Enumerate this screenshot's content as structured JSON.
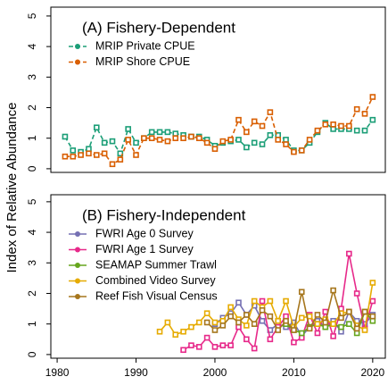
{
  "chart_data": [
    {
      "type": "line",
      "title": "(A) Fishery-Dependent",
      "ylabel": "Index of Relative Abundance",
      "x": [
        1981,
        1982,
        1983,
        1984,
        1985,
        1986,
        1987,
        1988,
        1989,
        1990,
        1991,
        1992,
        1993,
        1994,
        1995,
        1996,
        1997,
        1998,
        1999,
        2000,
        2001,
        2002,
        2003,
        2004,
        2005,
        2006,
        2007,
        2008,
        2009,
        2010,
        2011,
        2012,
        2013,
        2014,
        2015,
        2016,
        2017,
        2018,
        2019,
        2020
      ],
      "xlim": [
        1979.2,
        2021.6
      ],
      "ylim": [
        -0.12,
        5.29
      ],
      "yticks": [
        0,
        1,
        2,
        3,
        4,
        5
      ],
      "dashed": true,
      "series": [
        {
          "name": "MRIP Private CPUE",
          "color": "#1b9e77",
          "values": [
            1.05,
            0.6,
            0.55,
            0.65,
            1.35,
            0.85,
            0.9,
            0.5,
            1.3,
            0.85,
            1.0,
            1.2,
            1.2,
            1.2,
            1.15,
            1.1,
            1.05,
            1.05,
            0.95,
            0.75,
            0.85,
            0.9,
            0.95,
            0.7,
            0.85,
            0.8,
            1.1,
            1.1,
            0.95,
            0.6,
            0.6,
            0.85,
            1.2,
            1.5,
            1.3,
            1.3,
            1.3,
            1.25,
            1.25,
            1.6
          ]
        },
        {
          "name": "MRIP Shore CPUE",
          "color": "#d95f02",
          "values": [
            0.4,
            0.4,
            0.45,
            0.5,
            0.45,
            0.5,
            0.15,
            0.3,
            0.95,
            0.45,
            1.0,
            1.0,
            0.95,
            0.9,
            1.0,
            1.0,
            1.05,
            1.0,
            0.85,
            0.65,
            0.9,
            0.95,
            1.6,
            1.2,
            1.55,
            1.4,
            1.85,
            0.95,
            0.8,
            0.55,
            0.6,
            0.95,
            1.25,
            1.45,
            1.45,
            1.4,
            1.4,
            1.95,
            1.8,
            2.35
          ]
        }
      ]
    },
    {
      "type": "line",
      "title": "(B) Fishery-Independent",
      "x": [
        1993,
        1994,
        1995,
        1996,
        1997,
        1998,
        1999,
        2000,
        2001,
        2002,
        2003,
        2004,
        2005,
        2006,
        2007,
        2008,
        2009,
        2010,
        2011,
        2012,
        2013,
        2014,
        2015,
        2016,
        2017,
        2018,
        2019,
        2020
      ],
      "xlim": [
        1979.2,
        2021.6
      ],
      "xticks": [
        1980,
        1990,
        2000,
        2010,
        2020
      ],
      "ylim": [
        -0.12,
        5.23
      ],
      "yticks": [
        0,
        1,
        2,
        3,
        4,
        5
      ],
      "dashed": false,
      "series": [
        {
          "name": "FWRI Age 0 Survey",
          "color": "#7570b3",
          "values": [
            null,
            null,
            null,
            null,
            null,
            null,
            null,
            1.0,
            1.2,
            1.35,
            1.7,
            1.3,
            1.6,
            1.1,
            0.8,
            1.0,
            0.9,
            1.05,
            0.6,
            0.9,
            1.1,
            0.9,
            1.1,
            0.75,
            1.4,
            1.1,
            1.0,
            1.3
          ]
        },
        {
          "name": "FWRI Age 1 Survey",
          "color": "#e7298a",
          "values": [
            null,
            null,
            null,
            0.15,
            0.3,
            0.25,
            0.55,
            0.25,
            0.3,
            0.3,
            0.9,
            0.5,
            0.2,
            1.75,
            0.5,
            0.9,
            1.25,
            0.4,
            0.55,
            1.3,
            0.7,
            1.4,
            0.6,
            1.5,
            3.3,
            2.0,
            0.85,
            1.75
          ]
        },
        {
          "name": "SEAMAP Summer Trawl",
          "color": "#66a61e",
          "values": [
            null,
            null,
            null,
            null,
            null,
            null,
            null,
            null,
            null,
            null,
            null,
            null,
            null,
            null,
            null,
            null,
            1.0,
            0.8,
            0.7,
            0.9,
            1.0,
            0.9,
            1.0,
            0.9,
            1.0,
            0.7,
            1.4,
            1.1
          ]
        },
        {
          "name": "Combined Video Survey",
          "color": "#e6ab02",
          "values": [
            0.75,
            1.05,
            0.65,
            0.75,
            0.9,
            1.05,
            1.35,
            1.05,
            1.1,
            1.55,
            1.15,
            0.95,
            1.75,
            1.55,
            1.75,
            1.1,
            1.75,
            0.9,
            1.2,
            1.25,
            1.0,
            1.15,
            1.0,
            1.35,
            1.4,
            0.95,
            0.8,
            2.35
          ]
        },
        {
          "name": "Reef Fish Visual Census",
          "color": "#a6761d",
          "values": [
            null,
            null,
            null,
            null,
            null,
            null,
            1.05,
            0.8,
            0.95,
            1.25,
            1.05,
            1.3,
            1.0,
            1.45,
            1.25,
            0.8,
            1.1,
            0.8,
            2.05,
            0.85,
            1.3,
            1.05,
            2.1,
            1.2,
            1.4,
            0.85,
            1.4,
            1.25
          ]
        }
      ]
    }
  ]
}
